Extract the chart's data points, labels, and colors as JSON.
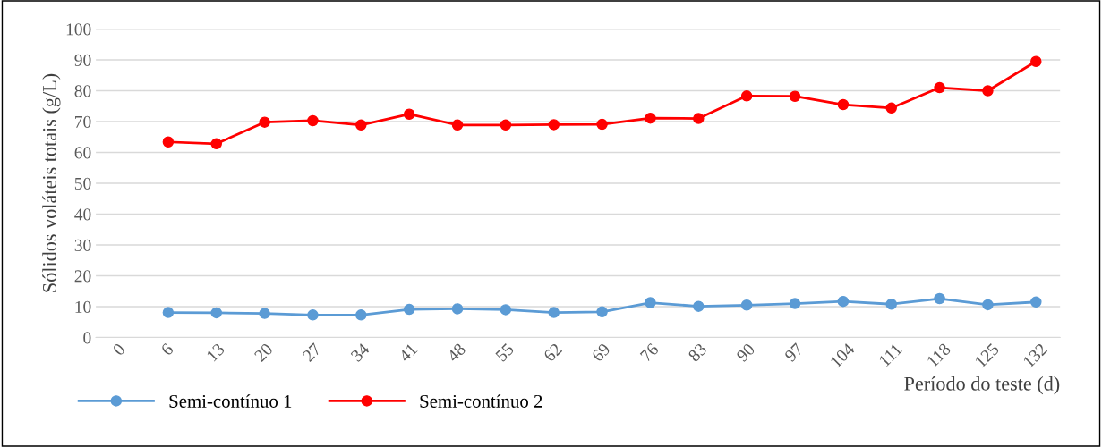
{
  "chart_data": {
    "type": "line",
    "ylabel": "Sólidos voláteis totais (g/L)",
    "xlabel": "Período do teste (d)",
    "categories": [
      "0",
      "6",
      "13",
      "20",
      "27",
      "34",
      "41",
      "48",
      "55",
      "62",
      "69",
      "76",
      "83",
      "90",
      "97",
      "104",
      "111",
      "118",
      "125",
      "132"
    ],
    "series": [
      {
        "name": "Semi-contínuo 1",
        "color": "#5b9bd5",
        "values": [
          null,
          8.1,
          8.0,
          7.8,
          7.3,
          7.3,
          9.1,
          9.3,
          9.0,
          8.1,
          8.3,
          11.3,
          10.1,
          10.5,
          11.0,
          11.7,
          10.8,
          12.6,
          10.6,
          11.5
        ]
      },
      {
        "name": "Semi-contínuo 2",
        "color": "#ff0000",
        "values": [
          null,
          63.4,
          62.8,
          69.8,
          70.3,
          68.9,
          72.4,
          68.9,
          68.9,
          69.0,
          69.1,
          71.1,
          71.0,
          78.3,
          78.2,
          75.5,
          74.4,
          81.0,
          80.0,
          89.5
        ]
      }
    ],
    "ylim": [
      0,
      100
    ],
    "yticks": [
      0,
      10,
      20,
      30,
      40,
      50,
      60,
      70,
      80,
      90,
      100
    ],
    "grid": "y",
    "legend": "bottom left",
    "marker": "circle",
    "line_style": "solid"
  }
}
